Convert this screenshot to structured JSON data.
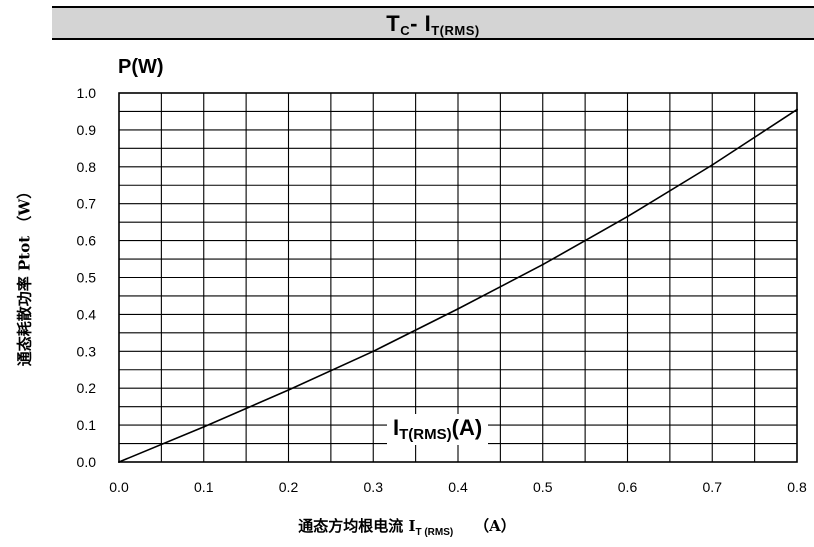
{
  "chart_data": {
    "type": "line",
    "title_main": "T",
    "title_sub1": "C",
    "title_mid": "- I",
    "title_sub2": "T(RMS)",
    "y_unit_label": "P(W)",
    "ylabel": "通态耗散功率 Ptot （W）",
    "xlabel_main": "通态方均根电流 I",
    "xlabel_sub": "T (RMS)",
    "xlabel_unit": "（A）",
    "inplot_label_main": "I",
    "inplot_label_sub": "T(RMS)",
    "inplot_label_unit": "(A)",
    "xlim": [
      0.0,
      0.8
    ],
    "ylim": [
      0.0,
      1.0
    ],
    "x_ticks": [
      "0.0",
      "0.1",
      "0.2",
      "0.3",
      "0.4",
      "0.5",
      "0.6",
      "0.7",
      "0.8"
    ],
    "y_ticks": [
      "0.0",
      "0.1",
      "0.2",
      "0.3",
      "0.4",
      "0.5",
      "0.6",
      "0.7",
      "0.8",
      "0.9",
      "1.0"
    ],
    "grid": true,
    "series": [
      {
        "x": [
          0.0,
          0.1,
          0.2,
          0.3,
          0.4,
          0.5,
          0.6,
          0.7,
          0.8
        ],
        "y": [
          0.0,
          0.095,
          0.195,
          0.3,
          0.415,
          0.535,
          0.665,
          0.805,
          0.955
        ]
      }
    ]
  }
}
